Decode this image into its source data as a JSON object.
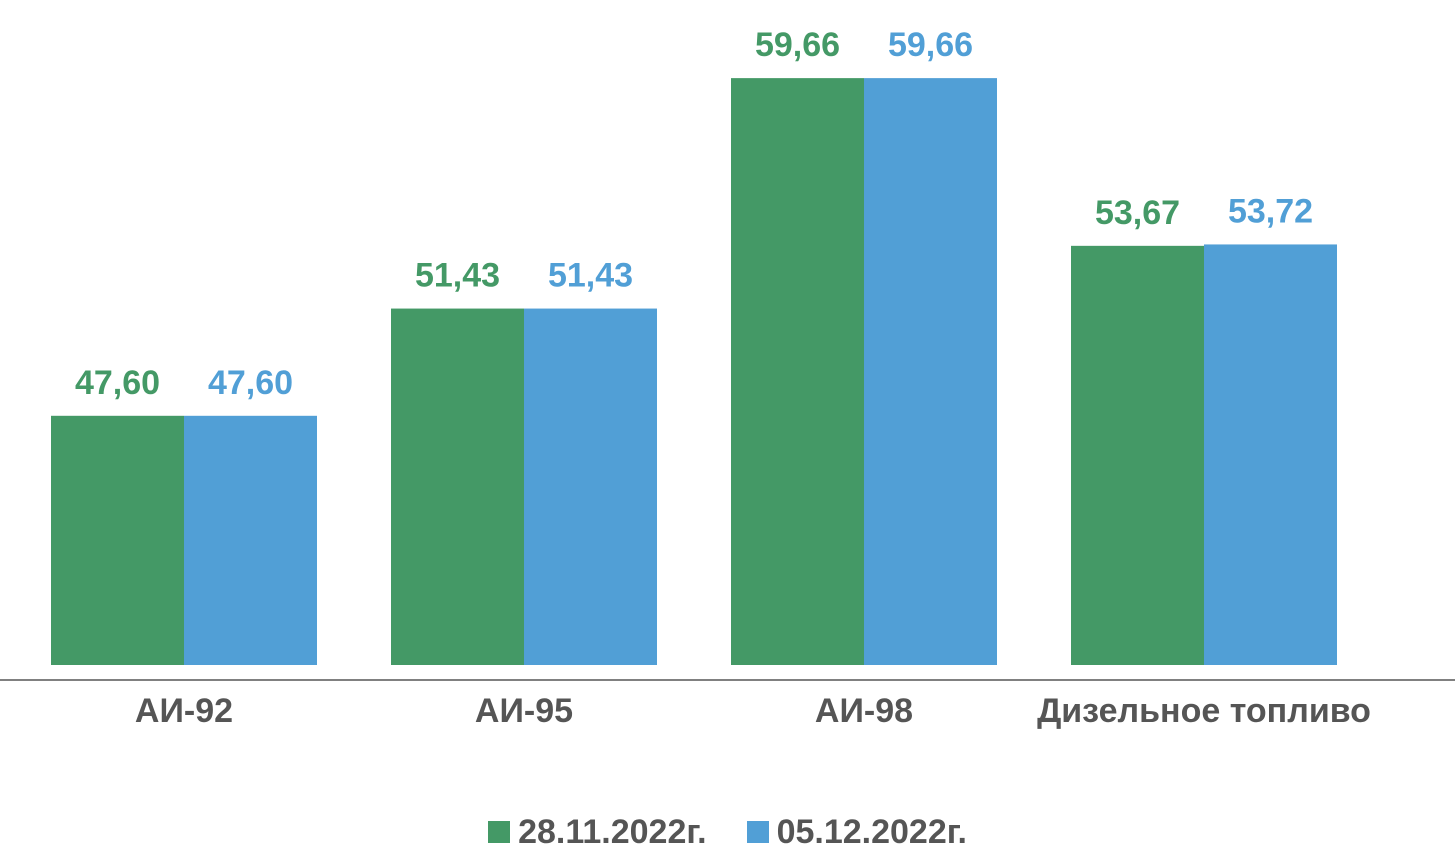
{
  "chart_data": {
    "type": "bar",
    "categories": [
      "АИ-92",
      "АИ-95",
      "АИ-98",
      "Дизельное топливо"
    ],
    "series": [
      {
        "name": "28.11.2022г.",
        "values": [
          47.6,
          51.43,
          59.66,
          53.67
        ],
        "labels": [
          "47,60",
          "51,43",
          "59,66",
          "53,67"
        ],
        "color": "#449966"
      },
      {
        "name": "05.12.2022г.",
        "values": [
          47.6,
          51.43,
          59.66,
          53.72
        ],
        "labels": [
          "47,60",
          "51,43",
          "59,66",
          "53,72"
        ],
        "color": "#519fd6"
      }
    ],
    "ylim": [
      38.7,
      60.6
    ],
    "legend_position": "bottom",
    "grid": false,
    "axis_line_color": "#808080",
    "category_label_color": "#555555"
  }
}
